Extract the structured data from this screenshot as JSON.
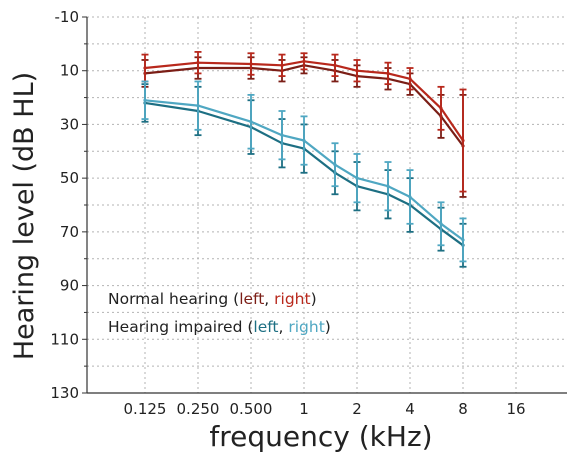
{
  "chart_data": {
    "type": "line",
    "xlabel": "frequency (kHz)",
    "ylabel": "Hearing level (dB HL)",
    "x_scale": "log2",
    "y_inverted": true,
    "grid": true,
    "x_ticks": [
      "0.125",
      "0.250",
      "0.500",
      "1",
      "2",
      "4",
      "8",
      "16"
    ],
    "y_ticks": [
      "-10",
      "10",
      "30",
      "50",
      "70",
      "90",
      "110",
      "130"
    ],
    "ylim": [
      -10,
      130
    ],
    "x_points": [
      0.125,
      0.25,
      0.5,
      0.75,
      1,
      1.5,
      2,
      3,
      4,
      6,
      8
    ],
    "series": [
      {
        "group": "Normal hearing",
        "side": "left",
        "color": "#7b1e16",
        "values": [
          11,
          9,
          9,
          10,
          8,
          10,
          12,
          13,
          15,
          27,
          38
        ],
        "error": [
          5,
          4,
          4,
          4,
          3,
          4,
          4,
          4,
          4,
          8,
          19
        ]
      },
      {
        "group": "Normal hearing",
        "side": "right",
        "color": "#b8281c",
        "values": [
          9,
          7,
          7.5,
          8,
          6.5,
          8,
          10,
          11,
          13,
          24,
          36
        ],
        "error": [
          5,
          4,
          4,
          4,
          3,
          4,
          4,
          4,
          4,
          8,
          19
        ]
      },
      {
        "group": "Hearing impaired",
        "side": "left",
        "color": "#1d6f83",
        "values": [
          22,
          25,
          31,
          37,
          39,
          48,
          53,
          56,
          60,
          69,
          75
        ],
        "error": [
          7,
          9,
          10,
          9,
          9,
          8,
          9,
          9,
          10,
          8,
          8
        ]
      },
      {
        "group": "Hearing impaired",
        "side": "right",
        "color": "#4fa7c2",
        "values": [
          21,
          23,
          29,
          34,
          36,
          45,
          50,
          53,
          57,
          67,
          73
        ],
        "error": [
          7,
          9,
          10,
          9,
          9,
          8,
          9,
          9,
          10,
          8,
          8
        ]
      }
    ],
    "legend": {
      "placement": "lower-left",
      "entries": [
        {
          "prefix": "Normal hearing (",
          "left": "left",
          "sep": ", ",
          "right": "right",
          "suffix": ")",
          "left_color": "#7b1e16",
          "right_color": "#b8281c"
        },
        {
          "prefix": "Hearing impaired (",
          "left": "left",
          "sep": ", ",
          "right": "right",
          "suffix": ")",
          "left_color": "#1d6f83",
          "right_color": "#4fa7c2"
        }
      ]
    }
  }
}
